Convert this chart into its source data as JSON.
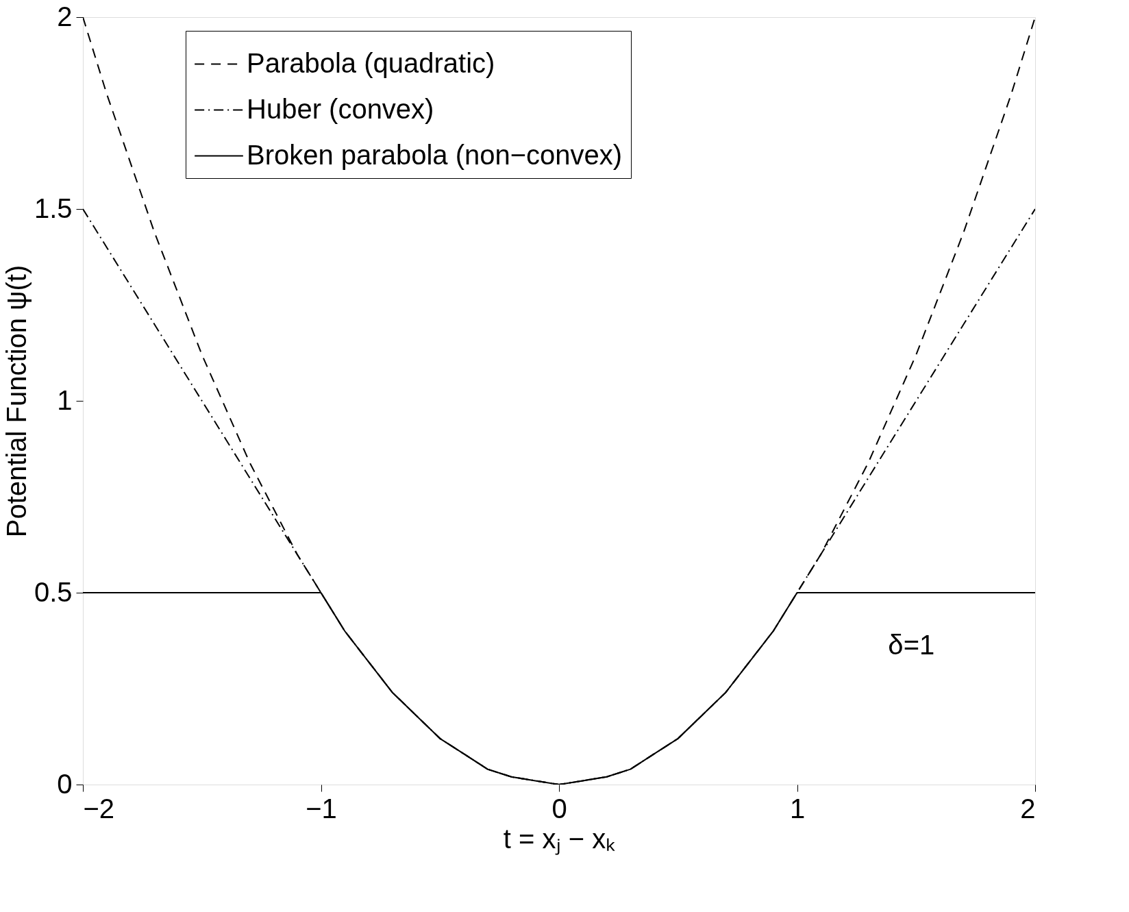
{
  "chart_data": {
    "type": "line",
    "xlabel": "t = xⱼ − xₖ",
    "ylabel": "Potential Function  ψ(t)",
    "xlim": [
      -2,
      2
    ],
    "xticks": [
      {
        "value": -2,
        "label": "−2"
      },
      {
        "value": -1,
        "label": "−1"
      },
      0,
      1,
      2
    ],
    "ylim": [
      0,
      2
    ],
    "yticks": [
      0,
      0.5,
      1,
      1.5,
      2
    ],
    "grid": false,
    "legend": "top left",
    "marker": "none",
    "annotations": [
      "δ=1"
    ],
    "x": [
      -2,
      -1.9,
      -1.8,
      -1.7,
      -1.6,
      -1.5,
      -1.4,
      -1.3,
      -1.2,
      -1.1,
      -1,
      -0.9,
      -0.8,
      -0.7,
      -0.6,
      -0.5,
      -0.4,
      -0.3,
      -0.2,
      -0.1,
      0,
      0.1,
      0.2,
      0.3,
      0.4,
      0.5,
      0.6,
      0.7,
      0.8,
      0.9,
      1,
      1.1,
      1.2,
      1.3,
      1.4,
      1.5,
      1.6,
      1.7,
      1.8,
      1.9,
      2
    ],
    "series": [
      {
        "name": "Parabola (quadratic)",
        "color": "#000000",
        "line_style": "dashed",
        "values": [
          2,
          1.8,
          1.62,
          1.44,
          1.28,
          1.12,
          0.98,
          0.84,
          0.72,
          0.6,
          0.5,
          0.4,
          0.32,
          0.24,
          0.18,
          0.12,
          0.08,
          0.04,
          0.02,
          0.01,
          0,
          0.01,
          0.02,
          0.04,
          0.08,
          0.12,
          0.18,
          0.24,
          0.32,
          0.4,
          0.5,
          0.6,
          0.72,
          0.84,
          0.98,
          1.12,
          1.28,
          1.44,
          1.62,
          1.8,
          2
        ]
      },
      {
        "name": "Huber (convex)",
        "color": "#000000",
        "line_style": "dashdot",
        "values": [
          1.5,
          1.4,
          1.3,
          1.2,
          1.1,
          1,
          0.9,
          0.8,
          0.7,
          0.6,
          0.5,
          0.4,
          0.32,
          0.24,
          0.18,
          0.12,
          0.08,
          0.04,
          0.02,
          0.01,
          0,
          0.01,
          0.02,
          0.04,
          0.08,
          0.12,
          0.18,
          0.24,
          0.32,
          0.4,
          0.5,
          0.6,
          0.7,
          0.8,
          0.9,
          1,
          1.1,
          1.2,
          1.3,
          1.4,
          1.5
        ]
      },
      {
        "name": "Broken parabola (non−convex)",
        "color": "#000000",
        "line_style": "solid",
        "values": [
          0.5,
          0.5,
          0.5,
          0.5,
          0.5,
          0.5,
          0.5,
          0.5,
          0.5,
          0.5,
          0.5,
          0.4,
          0.32,
          0.24,
          0.18,
          0.12,
          0.08,
          0.04,
          0.02,
          0.01,
          0,
          0.01,
          0.02,
          0.04,
          0.08,
          0.12,
          0.18,
          0.24,
          0.32,
          0.4,
          0.5,
          0.5,
          0.5,
          0.5,
          0.5,
          0.5,
          0.5,
          0.5,
          0.5,
          0.5,
          0.5
        ]
      }
    ]
  }
}
